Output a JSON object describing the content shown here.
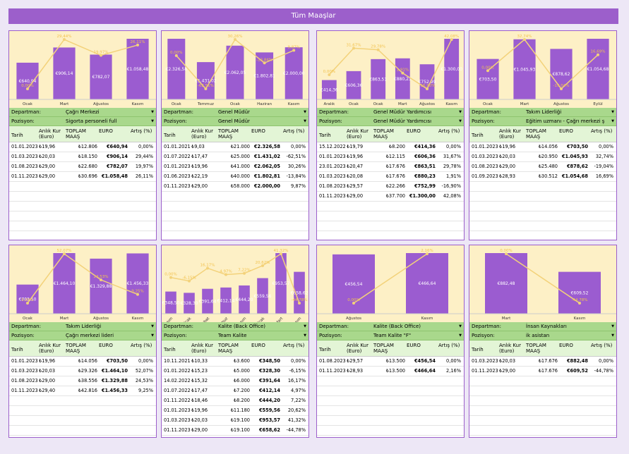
{
  "title": "Tüm Maaşlar",
  "labels": {
    "department": "Departman:",
    "position": "Pozisyon:"
  },
  "columns": [
    "Tarih",
    "Anlık Kur (Euro)",
    "TOPLAM MAAŞ",
    "EURO",
    "Artış (%)"
  ],
  "panels": [
    {
      "department": "Çağrı Merkezi",
      "position": "Sigorta personeli full",
      "categories": [
        "Ocak",
        "Mart",
        "Ağustos",
        "Kasım"
      ],
      "rows": [
        {
          "date": "01.01.2023",
          "rate": "₺19,96",
          "total": "₺12.806",
          "euro": 640.94,
          "euro_label": "€640,94",
          "pct": 0,
          "pct_label": "0,00%"
        },
        {
          "date": "01.03.2023",
          "rate": "₺20,03",
          "total": "₺18.150",
          "euro": 906.14,
          "euro_label": "€906,14",
          "pct": 29.44,
          "pct_label": "29,44%"
        },
        {
          "date": "01.08.2023",
          "rate": "₺29,00",
          "total": "₺22.680",
          "euro": 782.07,
          "euro_label": "€782,07",
          "pct": 19.97,
          "pct_label": "19,97%"
        },
        {
          "date": "01.11.2023",
          "rate": "₺29,00",
          "total": "₺30.696",
          "euro": 1058.48,
          "euro_label": "€1.058,48",
          "pct": 26.11,
          "pct_label": "26,11%"
        }
      ]
    },
    {
      "department": "Genel Müdür",
      "position": "Genel Müdür",
      "categories": [
        "Ocak",
        "Temmuz",
        "Ocak",
        "Haziran",
        "Kasım"
      ],
      "rows": [
        {
          "date": "01.01.2021",
          "rate": "₺9,03",
          "total": "₺21.000",
          "euro": 2326.58,
          "euro_label": "€2.326,58",
          "pct": 0,
          "pct_label": "0,00%"
        },
        {
          "date": "01.07.2022",
          "rate": "₺17,47",
          "total": "₺25.000",
          "euro": 1431.02,
          "euro_label": "€1.431,02",
          "pct": -62.51,
          "pct_label": "-62,51%"
        },
        {
          "date": "01.01.2023",
          "rate": "₺19,96",
          "total": "₺41.000",
          "euro": 2062.05,
          "euro_label": "€2.062,05",
          "pct": 30.26,
          "pct_label": "30,26%"
        },
        {
          "date": "01.06.2023",
          "rate": "₺22,19",
          "total": "₺40.000",
          "euro": 1802.81,
          "euro_label": "€1.802,81",
          "pct": -13.84,
          "pct_label": "-13,84%"
        },
        {
          "date": "01.11.2023",
          "rate": "₺29,00",
          "total": "₺58.000",
          "euro": 2000.0,
          "euro_label": "€2.000,00",
          "pct": 9.87,
          "pct_label": "9,87%"
        }
      ]
    },
    {
      "department": "Genel Müdür Yardımcısı",
      "position": "Genel Müdür Yardımcısı",
      "categories": [
        "Aralık",
        "Ocak",
        "Ocak",
        "Mart",
        "Ağustos",
        "Kasım"
      ],
      "rows": [
        {
          "date": "15.12.2022",
          "rate": "₺19,79",
          "total": "₺8.200",
          "euro": 414.36,
          "euro_label": "€414,36",
          "pct": 0,
          "pct_label": "0,00%"
        },
        {
          "date": "01.01.2023",
          "rate": "₺19,96",
          "total": "₺12.115",
          "euro": 606.36,
          "euro_label": "€606,36",
          "pct": 31.67,
          "pct_label": "31,67%"
        },
        {
          "date": "23.01.2023",
          "rate": "₺20,47",
          "total": "₺17.676",
          "euro": 863.51,
          "euro_label": "€863,51",
          "pct": 29.78,
          "pct_label": "29,78%"
        },
        {
          "date": "01.03.2023",
          "rate": "₺20,08",
          "total": "₺17.676",
          "euro": 880.23,
          "euro_label": "€880,23",
          "pct": 1.91,
          "pct_label": "1,91%"
        },
        {
          "date": "01.08.2023",
          "rate": "₺29,57",
          "total": "₺22.266",
          "euro": 752.99,
          "euro_label": "€752,99",
          "pct": -16.9,
          "pct_label": "-16,90%"
        },
        {
          "date": "01.11.2023",
          "rate": "₺29,00",
          "total": "₺37.700",
          "euro": 1300.0,
          "euro_label": "€1.300,00",
          "pct": 42.08,
          "pct_label": "42,08%"
        }
      ]
    },
    {
      "department": "Takım Liderliği",
      "position": "Eğitim uzmanı - Çağrı merkezi ş",
      "categories": [
        "Ocak",
        "Mart",
        "Ağustos",
        "Eylül"
      ],
      "rows": [
        {
          "date": "01.01.2023",
          "rate": "₺19,96",
          "total": "₺14.056",
          "euro": 703.5,
          "euro_label": "€703,50",
          "pct": 0,
          "pct_label": "0,00%"
        },
        {
          "date": "01.03.2023",
          "rate": "₺20,03",
          "total": "₺20.950",
          "euro": 1045.93,
          "euro_label": "€1.045,93",
          "pct": 32.74,
          "pct_label": "32,74%"
        },
        {
          "date": "01.08.2023",
          "rate": "₺29,00",
          "total": "₺25.480",
          "euro": 878.62,
          "euro_label": "€878,62",
          "pct": -19.04,
          "pct_label": "-19,04%"
        },
        {
          "date": "01.09.2023",
          "rate": "₺28,93",
          "total": "₺30.512",
          "euro": 1054.68,
          "euro_label": "€1.054,68",
          "pct": 16.69,
          "pct_label": "16,69%"
        }
      ]
    },
    {
      "department": "Takım Liderliği",
      "position": "Çağrı merkezi lideri",
      "categories": [
        "Ocak",
        "Mart",
        "Ağustos",
        "Kasım"
      ],
      "rows": [
        {
          "date": "01.01.2023",
          "rate": "₺19,96",
          "total": "₺14.056",
          "euro": 703.5,
          "euro_label": "€703,50",
          "pct": 0,
          "pct_label": "0,00%"
        },
        {
          "date": "01.03.2023",
          "rate": "₺20,03",
          "total": "₺29.326",
          "euro": 1464.1,
          "euro_label": "€1.464,10",
          "pct": 52.07,
          "pct_label": "52,07%"
        },
        {
          "date": "01.08.2023",
          "rate": "₺29,00",
          "total": "₺38.556",
          "euro": 1329.88,
          "euro_label": "€1.329,88",
          "pct": 24.53,
          "pct_label": "24,53%"
        },
        {
          "date": "01.11.2023",
          "rate": "₺29,40",
          "total": "₺42.816",
          "euro": 1456.33,
          "euro_label": "€1.456,33",
          "pct": 9.25,
          "pct_label": "9,25%"
        }
      ]
    },
    {
      "department": "Kalite (Back Office)",
      "position": "Team Kalite",
      "categories": [
        "Kasım",
        "Ocak",
        "Şubat",
        "Temmuz",
        "Kasım",
        "Ocak",
        "Mart",
        "Kasım"
      ],
      "rows": [
        {
          "date": "10.11.2021",
          "rate": "₺10,33",
          "total": "₺3.600",
          "euro": 348.5,
          "euro_label": "€348,50",
          "pct": 0,
          "pct_label": "0,00%"
        },
        {
          "date": "01.01.2022",
          "rate": "₺15,23",
          "total": "₺5.000",
          "euro": 328.3,
          "euro_label": "€328,30",
          "pct": -6.15,
          "pct_label": "-6,15%"
        },
        {
          "date": "14.02.2022",
          "rate": "₺15,32",
          "total": "₺6.000",
          "euro": 391.64,
          "euro_label": "€391,64",
          "pct": 16.17,
          "pct_label": "16,17%"
        },
        {
          "date": "01.07.2022",
          "rate": "₺17,47",
          "total": "₺7.200",
          "euro": 412.14,
          "euro_label": "€412,14",
          "pct": 4.97,
          "pct_label": "4,97%"
        },
        {
          "date": "01.11.2022",
          "rate": "₺18,46",
          "total": "₺8.200",
          "euro": 444.2,
          "euro_label": "€444,20",
          "pct": 7.22,
          "pct_label": "7,22%"
        },
        {
          "date": "01.01.2023",
          "rate": "₺19,96",
          "total": "₺11.180",
          "euro": 559.56,
          "euro_label": "€559,56",
          "pct": 20.62,
          "pct_label": "20,62%"
        },
        {
          "date": "01.03.2023",
          "rate": "₺20,03",
          "total": "₺19.100",
          "euro": 953.57,
          "euro_label": "€953,57",
          "pct": 41.32,
          "pct_label": "41,32%"
        },
        {
          "date": "01.11.2023",
          "rate": "₺29,00",
          "total": "₺19.100",
          "euro": 658.62,
          "euro_label": "€658,62",
          "pct": -44.78,
          "pct_label": "-44,78%"
        }
      ]
    },
    {
      "department": "Kalite (Back Office)",
      "position": "Team Kalite \"F\"",
      "categories": [
        "Ağustos",
        "Kasım"
      ],
      "rows": [
        {
          "date": "01.08.2023",
          "rate": "₺29,57",
          "total": "₺13.500",
          "euro": 456.54,
          "euro_label": "€456,54",
          "pct": 0,
          "pct_label": "0,00%"
        },
        {
          "date": "01.11.2023",
          "rate": "₺28,93",
          "total": "₺13.500",
          "euro": 466.64,
          "euro_label": "€466,64",
          "pct": 2.16,
          "pct_label": "2,16%"
        }
      ]
    },
    {
      "department": "İnsan Kaynakları",
      "position": "ik asistan",
      "categories": [
        "Mart",
        "Kasım"
      ],
      "rows": [
        {
          "date": "01.03.2023",
          "rate": "₺20,03",
          "total": "₺17.676",
          "euro": 882.48,
          "euro_label": "€882,48",
          "pct": 0,
          "pct_label": "0,00%"
        },
        {
          "date": "01.11.2023",
          "rate": "₺29,00",
          "total": "₺17.676",
          "euro": 609.52,
          "euro_label": "€609,52",
          "pct": -44.78,
          "pct_label": "-44,78%"
        }
      ]
    }
  ]
}
